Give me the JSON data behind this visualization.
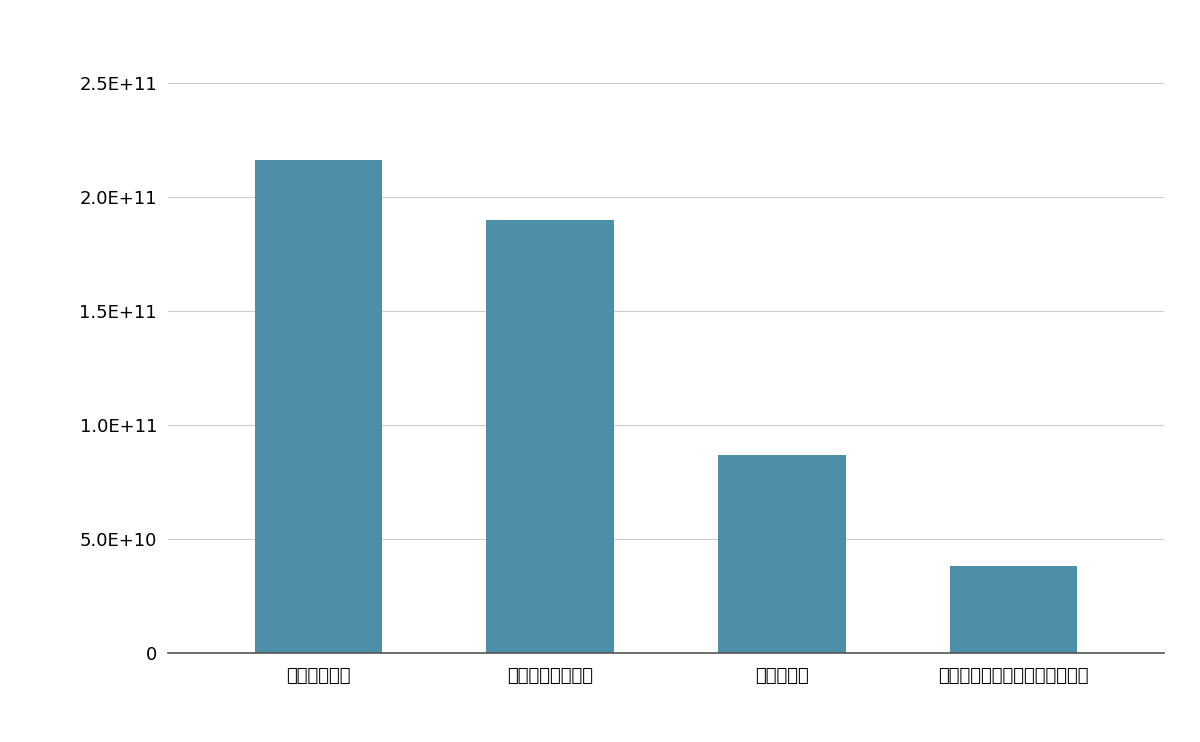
{
  "categories": [
    "日本オラクル",
    "トレンドマイクロ",
    "オービック",
    "富士フイルムシステムサービス"
  ],
  "values": [
    216000000000.0,
    190000000000.0,
    87000000000.0,
    38000000000.0
  ],
  "bar_color": "#4d8fa8",
  "ylim": [
    0,
    270000000000.0
  ],
  "yticks": [
    0,
    50000000000.0,
    100000000000.0,
    150000000000.0,
    200000000000.0,
    250000000000.0
  ],
  "background_color": "#ffffff",
  "grid_color": "#cccccc",
  "figsize": [
    12.0,
    7.42
  ]
}
